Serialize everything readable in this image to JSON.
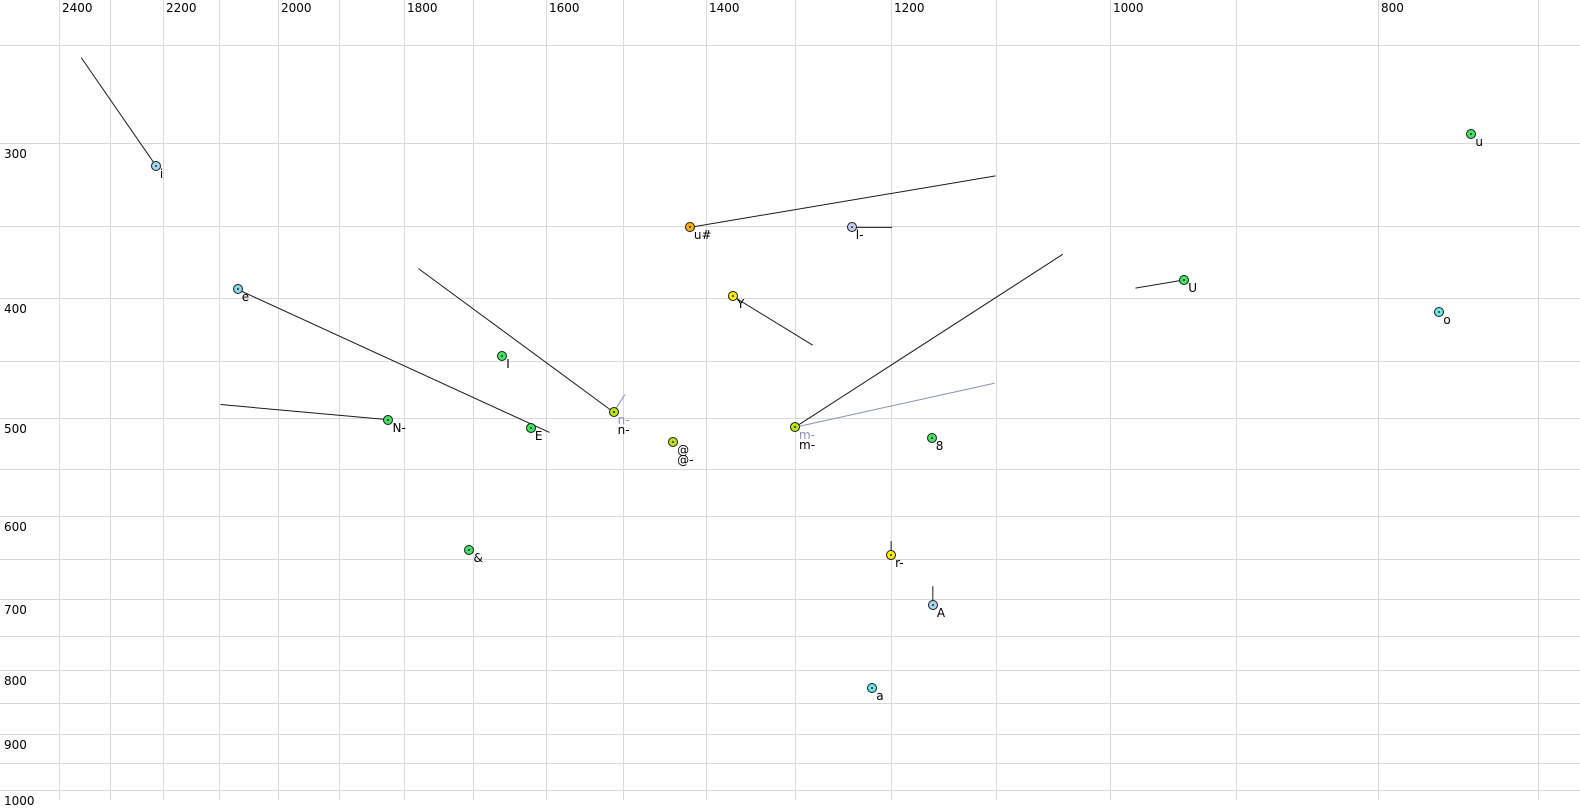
{
  "chart_data": {
    "type": "scatter",
    "title": "",
    "description": "Vowel formant plot: F2 (Hz) on top x-axis, F1 (Hz) on left y-axis, both logarithmic and oriented high-to-low, with phoneme data points and formant trajectory lines",
    "grid": true,
    "x_axis": {
      "position": "top",
      "scale": "log",
      "reversed": true,
      "domain_left": 2521,
      "domain_right": 676,
      "tick_labels": [
        2400,
        2200,
        2000,
        1800,
        1600,
        1400,
        1200,
        1000,
        800
      ],
      "gridlines": [
        2400,
        2300,
        2200,
        2100,
        2000,
        1900,
        1800,
        1700,
        1600,
        1500,
        1400,
        1300,
        1200,
        1100,
        1000,
        900,
        800,
        700
      ]
    },
    "y_axis": {
      "position": "left",
      "scale": "log",
      "reversed": true,
      "domain_top": 230,
      "domain_bottom": 1018,
      "tick_labels": [
        300,
        400,
        500,
        600,
        700,
        800,
        900,
        1000
      ],
      "gridlines": [
        250,
        300,
        350,
        400,
        450,
        500,
        550,
        600,
        650,
        700,
        750,
        800,
        850,
        900,
        950,
        1000
      ]
    },
    "palette": {
      "lightblue": "#a5d6ec",
      "cyan": "#8dd7e8",
      "turquoise": "#6fe4e0",
      "green": "#46e163",
      "chartreuse": "#b9e414",
      "yellow": "#ffee00",
      "orange": "#ffb300",
      "lavender": "#c9cbf0",
      "gray_series": "#8890b5",
      "line_black": "#1a1a1a",
      "grid_gray": "#d9d9d9",
      "marker_center_dot": "#1a3040"
    },
    "points": [
      {
        "id": "i",
        "f2": 2214,
        "f1": 313,
        "fill": "lightblue",
        "tags": [
          {
            "t": "i"
          }
        ]
      },
      {
        "id": "e",
        "f2": 2068,
        "f1": 394,
        "fill": "cyan",
        "tags": [
          {
            "t": "e"
          }
        ]
      },
      {
        "id": "N-",
        "f2": 1824,
        "f1": 502,
        "fill": "green",
        "tags": [
          {
            "t": "N-"
          }
        ]
      },
      {
        "id": "I",
        "f2": 1659,
        "f1": 446,
        "fill": "green",
        "tags": [
          {
            "t": "I"
          }
        ]
      },
      {
        "id": "E",
        "f2": 1620,
        "f1": 510,
        "fill": "green",
        "tags": [
          {
            "t": "E"
          }
        ]
      },
      {
        "id": "n-",
        "f2": 1512,
        "f1": 495,
        "fill": "chartreuse",
        "tags": [
          {
            "t": "n-",
            "gray": true
          },
          {
            "t": "n-"
          }
        ]
      },
      {
        "id": "u#",
        "f2": 1419,
        "f1": 351,
        "fill": "orange",
        "tags": [
          {
            "t": "u#"
          }
        ]
      },
      {
        "id": "Y",
        "f2": 1369,
        "f1": 399,
        "fill": "yellow",
        "tags": [
          {
            "t": "Y"
          }
        ]
      },
      {
        "id": "@",
        "f2": 1439,
        "f1": 523,
        "fill": "chartreuse",
        "tags": [
          {
            "t": "@"
          },
          {
            "t": "@-"
          }
        ]
      },
      {
        "id": "l-",
        "f2": 1240,
        "f1": 351,
        "fill": "lavender",
        "tags": [
          {
            "t": "l-"
          }
        ]
      },
      {
        "id": "m-",
        "f2": 1300,
        "f1": 509,
        "fill": "chartreuse",
        "tags": [
          {
            "t": "m-",
            "gray": true
          },
          {
            "t": "m-"
          }
        ]
      },
      {
        "id": "8",
        "f2": 1160,
        "f1": 519,
        "fill": "green",
        "tags": [
          {
            "t": "8"
          }
        ]
      },
      {
        "id": "&",
        "f2": 1705,
        "f1": 640,
        "fill": "green",
        "tags": [
          {
            "t": "&"
          }
        ]
      },
      {
        "id": "r-",
        "f2": 1200,
        "f1": 645,
        "fill": "yellow",
        "tags": [
          {
            "t": "r-"
          }
        ]
      },
      {
        "id": "A",
        "f2": 1159,
        "f1": 708,
        "fill": "lightblue",
        "tags": [
          {
            "t": "A"
          }
        ]
      },
      {
        "id": "a",
        "f2": 1219,
        "f1": 827,
        "fill": "turquoise",
        "tags": [
          {
            "t": "a"
          }
        ]
      },
      {
        "id": "U",
        "f2": 940,
        "f1": 387,
        "fill": "green",
        "tags": [
          {
            "t": "U"
          }
        ]
      },
      {
        "id": "u",
        "f2": 740,
        "f1": 295,
        "fill": "green",
        "tags": [
          {
            "t": "u"
          }
        ]
      },
      {
        "id": "o",
        "f2": 760,
        "f1": 411,
        "fill": "turquoise",
        "tags": [
          {
            "t": "o"
          }
        ]
      }
    ],
    "segments": [
      {
        "name": "i-trajectory",
        "x1": 2356,
        "y1": 256,
        "x2": 2214,
        "y2": 313,
        "series": "black"
      },
      {
        "name": "e-trajectory",
        "x1": 2068,
        "y1": 394,
        "x2": 1595,
        "y2": 514,
        "series": "black"
      },
      {
        "name": "N--trajectory",
        "x1": 2098,
        "y1": 488,
        "x2": 1824,
        "y2": 502,
        "series": "black"
      },
      {
        "name": "n--trajectory",
        "x1": 1779,
        "y1": 379,
        "x2": 1512,
        "y2": 495,
        "series": "black"
      },
      {
        "name": "n--gray-trajectory",
        "x1": 1512,
        "y1": 495,
        "x2": 1498,
        "y2": 479,
        "series": "gray"
      },
      {
        "name": "u#-trajectory",
        "x1": 1419,
        "y1": 351,
        "x2": 1100,
        "y2": 319,
        "series": "black"
      },
      {
        "name": "l--trajectory",
        "x1": 1240,
        "y1": 351,
        "x2": 1199,
        "y2": 351,
        "series": "black"
      },
      {
        "name": "Y-trajectory",
        "x1": 1369,
        "y1": 399,
        "x2": 1281,
        "y2": 437,
        "series": "black"
      },
      {
        "name": "m--trajectory",
        "x1": 1300,
        "y1": 509,
        "x2": 1040,
        "y2": 369,
        "series": "black"
      },
      {
        "name": "m--gray-trajectory",
        "x1": 1300,
        "y1": 509,
        "x2": 1101,
        "y2": 469,
        "series": "gray"
      },
      {
        "name": "r--trajectory",
        "x1": 1200,
        "y1": 645,
        "x2": 1200,
        "y2": 629,
        "series": "black"
      },
      {
        "name": "A-trajectory",
        "x1": 1159,
        "y1": 708,
        "x2": 1159,
        "y2": 684,
        "series": "black"
      },
      {
        "name": "U-trajectory",
        "x1": 940,
        "y1": 387,
        "x2": 979,
        "y2": 393,
        "series": "black"
      }
    ]
  }
}
